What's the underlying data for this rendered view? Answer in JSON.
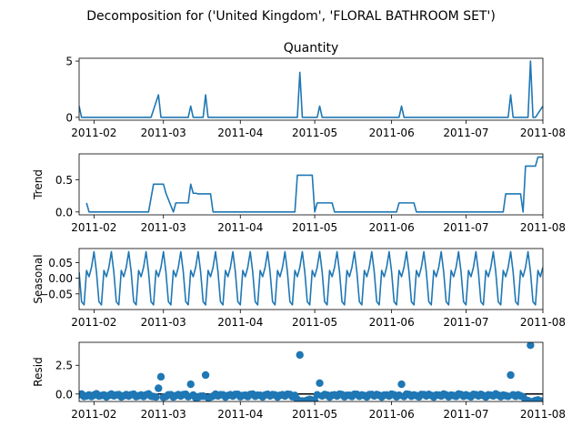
{
  "figure": {
    "suptitle": "Decomposition for ('United Kingdom', 'FLORAL BATHROOM SET')"
  },
  "chart_data": [
    {
      "type": "line",
      "panel": "observed",
      "title": "Quantity",
      "ylabel": "",
      "xlim": [
        "2011-01-26",
        "2011-08-01"
      ],
      "ylim": [
        -0.25,
        5.25
      ],
      "yticks": [
        0,
        5
      ],
      "ytick_labels": [
        "0",
        "5"
      ],
      "xticks": [
        "2011-02-01",
        "2011-03-01",
        "2011-04-01",
        "2011-05-01",
        "2011-06-01",
        "2011-07-01",
        "2011-08-01"
      ],
      "xtick_labels": [
        "2011-02",
        "2011-03",
        "2011-04",
        "2011-05",
        "2011-06",
        "2011-07",
        "2011-08"
      ],
      "color": "#1f77b4",
      "x": [
        "2011-01-26",
        "2011-01-27",
        "2011-02-24",
        "2011-02-27",
        "2011-02-28",
        "2011-03-11",
        "2011-03-12",
        "2011-03-13",
        "2011-03-17",
        "2011-03-18",
        "2011-03-19",
        "2011-04-24",
        "2011-04-25",
        "2011-04-26",
        "2011-05-02",
        "2011-05-03",
        "2011-05-04",
        "2011-06-04",
        "2011-06-05",
        "2011-06-06",
        "2011-07-18",
        "2011-07-19",
        "2011-07-20",
        "2011-07-26",
        "2011-07-27",
        "2011-07-28",
        "2011-07-29",
        "2011-08-01"
      ],
      "y": [
        1,
        0,
        0,
        2,
        0,
        0,
        1,
        0,
        0,
        2,
        0,
        0,
        4,
        0,
        0,
        1,
        0,
        0,
        1,
        0,
        0,
        2,
        0,
        0,
        5,
        0,
        0,
        1
      ]
    },
    {
      "type": "line",
      "panel": "trend",
      "ylabel": "Trend",
      "xlim": [
        "2011-01-26",
        "2011-08-01"
      ],
      "ylim": [
        -0.045,
        0.9
      ],
      "yticks": [
        0,
        0.5
      ],
      "ytick_labels": [
        "0.0",
        "0.5"
      ],
      "xticks": [
        "2011-02-01",
        "2011-03-01",
        "2011-04-01",
        "2011-05-01",
        "2011-06-01",
        "2011-07-01",
        "2011-08-01"
      ],
      "xtick_labels": [
        "2011-02",
        "2011-03",
        "2011-04",
        "2011-05",
        "2011-06",
        "2011-07",
        "2011-08"
      ],
      "color": "#1f77b4",
      "x": [
        "2011-01-29",
        "2011-01-30",
        "2011-02-23",
        "2011-02-25",
        "2011-03-01",
        "2011-03-02",
        "2011-03-05",
        "2011-03-06",
        "2011-03-11",
        "2011-03-12",
        "2011-03-13",
        "2011-03-14",
        "2011-03-15",
        "2011-03-20",
        "2011-03-21",
        "2011-04-23",
        "2011-04-24",
        "2011-04-30",
        "2011-05-01",
        "2011-05-02",
        "2011-05-08",
        "2011-05-09",
        "2011-06-03",
        "2011-06-04",
        "2011-06-10",
        "2011-06-11",
        "2011-07-16",
        "2011-07-17",
        "2011-07-23",
        "2011-07-24",
        "2011-07-25",
        "2011-07-26",
        "2011-07-29",
        "2011-07-30",
        "2011-08-01"
      ],
      "y": [
        0.14,
        0,
        0,
        0.43,
        0.43,
        0.29,
        0,
        0.14,
        0.14,
        0.43,
        0.29,
        0.29,
        0.28,
        0.28,
        0,
        0,
        0.57,
        0.57,
        0,
        0.14,
        0.14,
        0,
        0,
        0.14,
        0.14,
        0,
        0,
        0.28,
        0.28,
        0,
        0.71,
        0.71,
        0.71,
        0.85,
        0.85
      ]
    },
    {
      "type": "line",
      "panel": "seasonal",
      "ylabel": "Seasonal",
      "xlim": [
        "2011-01-26",
        "2011-08-01"
      ],
      "ylim": [
        -0.1,
        0.095
      ],
      "yticks": [
        -0.05,
        0,
        0.05
      ],
      "ytick_labels": [
        "−0.05",
        "0.00",
        "0.05"
      ],
      "xticks": [
        "2011-02-01",
        "2011-03-01",
        "2011-04-01",
        "2011-05-01",
        "2011-06-01",
        "2011-07-01",
        "2011-08-01"
      ],
      "xtick_labels": [
        "2011-02",
        "2011-03",
        "2011-04",
        "2011-05",
        "2011-06",
        "2011-07",
        "2011-08"
      ],
      "color": "#1f77b4",
      "period": 7,
      "start": "2011-01-26",
      "end": "2011-08-01",
      "weekly_pattern": [
        0.02,
        -0.075,
        -0.085,
        0.025,
        0.005,
        0.035,
        0.085
      ]
    },
    {
      "type": "scatter",
      "panel": "resid",
      "ylabel": "Resid",
      "xlim": [
        "2011-01-26",
        "2011-08-01"
      ],
      "ylim": [
        -0.65,
        4.5
      ],
      "yticks": [
        0,
        2.5
      ],
      "ytick_labels": [
        "0.0",
        "2.5"
      ],
      "xticks": [
        "2011-02-01",
        "2011-03-01",
        "2011-04-01",
        "2011-05-01",
        "2011-06-01",
        "2011-07-01",
        "2011-08-01"
      ],
      "xtick_labels": [
        "2011-02",
        "2011-03",
        "2011-04",
        "2011-05",
        "2011-06",
        "2011-07",
        "2011-08"
      ],
      "baseline": 0,
      "color": "#1f77b4",
      "outliers": [
        {
          "x": "2011-02-27",
          "y": 0.5
        },
        {
          "x": "2011-02-28",
          "y": 1.5
        },
        {
          "x": "2011-03-12",
          "y": 0.85
        },
        {
          "x": "2011-03-18",
          "y": 1.65
        },
        {
          "x": "2011-04-25",
          "y": 3.4
        },
        {
          "x": "2011-05-03",
          "y": 0.95
        },
        {
          "x": "2011-06-05",
          "y": 0.85
        },
        {
          "x": "2011-07-19",
          "y": 1.65
        },
        {
          "x": "2011-07-27",
          "y": 4.25
        }
      ],
      "negative_runs": [
        {
          "from": "2011-02-25",
          "to": "2011-03-02",
          "y": -0.3
        },
        {
          "from": "2011-03-14",
          "to": "2011-03-21",
          "y": -0.25
        },
        {
          "from": "2011-04-24",
          "to": "2011-05-01",
          "y": -0.55
        },
        {
          "from": "2011-07-25",
          "to": "2011-08-01",
          "y": -0.6
        }
      ]
    }
  ]
}
